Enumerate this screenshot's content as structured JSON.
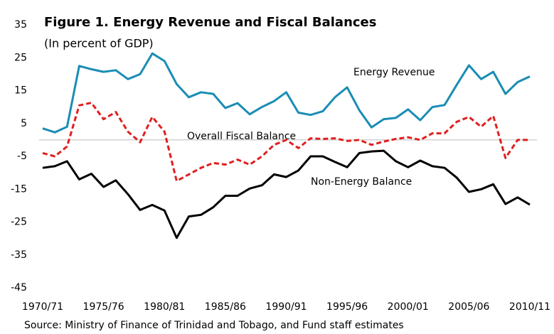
{
  "chart_data": {
    "type": "line",
    "title": "Figure 1. Energy Revenue and Fiscal Balances",
    "subtitle": "(In percent of GDP)",
    "source": "Source: Ministry of Finance of Trinidad and Tobago, and Fund staff estimates",
    "categories": [
      "1970/71",
      null,
      null,
      null,
      null,
      "1975/76",
      null,
      null,
      null,
      null,
      "1980/81",
      null,
      null,
      null,
      null,
      "1985/86",
      null,
      null,
      null,
      null,
      "1990/91",
      null,
      null,
      null,
      null,
      "1995/96",
      null,
      null,
      null,
      null,
      "2000/01",
      null,
      null,
      null,
      null,
      "2005/06",
      null,
      null,
      null,
      null,
      "2010/11"
    ],
    "ylim": [
      -45,
      35
    ],
    "yticks": [
      -45,
      -35,
      -25,
      -15,
      -5,
      5,
      15,
      25,
      35
    ],
    "grid": false,
    "series": [
      {
        "name": "Energy Revenue",
        "color": "#1a8db4",
        "dash": false,
        "values": [
          3.5,
          2.3,
          4,
          22.5,
          21.5,
          20.7,
          21.2,
          18.5,
          20,
          26.3,
          24,
          17,
          13,
          14.5,
          14,
          9.7,
          11.2,
          7.8,
          10,
          11.8,
          14.5,
          8.3,
          7.6,
          8.7,
          13,
          16,
          9,
          3.8,
          6.3,
          6.7,
          9.3,
          6,
          10,
          10.6,
          16.8,
          22.7,
          18.5,
          20.7,
          14,
          17.6,
          19.3
        ]
      },
      {
        "name": "Overall Fiscal Balance",
        "color": "#e01f1f",
        "dash": true,
        "values": [
          -4,
          -5,
          -2,
          10.5,
          11.3,
          6.3,
          8.5,
          2.5,
          -0.7,
          7,
          2.5,
          -12.5,
          -10.5,
          -8.5,
          -7,
          -7.5,
          -6,
          -7.5,
          -5,
          -1.5,
          0,
          -2.5,
          0.5,
          0.3,
          0.5,
          -0.3,
          0,
          -1.5,
          -0.5,
          0.3,
          0.8,
          0,
          2,
          2,
          5.5,
          7,
          4,
          7.3,
          -5.5,
          0,
          0
        ]
      },
      {
        "name": "Non-Energy Balance",
        "color": "#000000",
        "dash": false,
        "values": [
          -8.5,
          -8,
          -6.5,
          -12,
          -10.3,
          -14.3,
          -12.3,
          -16.5,
          -21.3,
          -19.8,
          -21.5,
          -29.8,
          -23.3,
          -22.8,
          -20.5,
          -17,
          -17,
          -14.8,
          -13.8,
          -10.5,
          -11.3,
          -9.3,
          -5,
          -5,
          -6.7,
          -8.3,
          -4,
          -3.5,
          -3.3,
          -6.5,
          -8.3,
          -6.3,
          -8,
          -8.5,
          -11.5,
          -15.8,
          -15,
          -13.5,
          -19.5,
          -17.5,
          -19.7
        ]
      }
    ]
  }
}
